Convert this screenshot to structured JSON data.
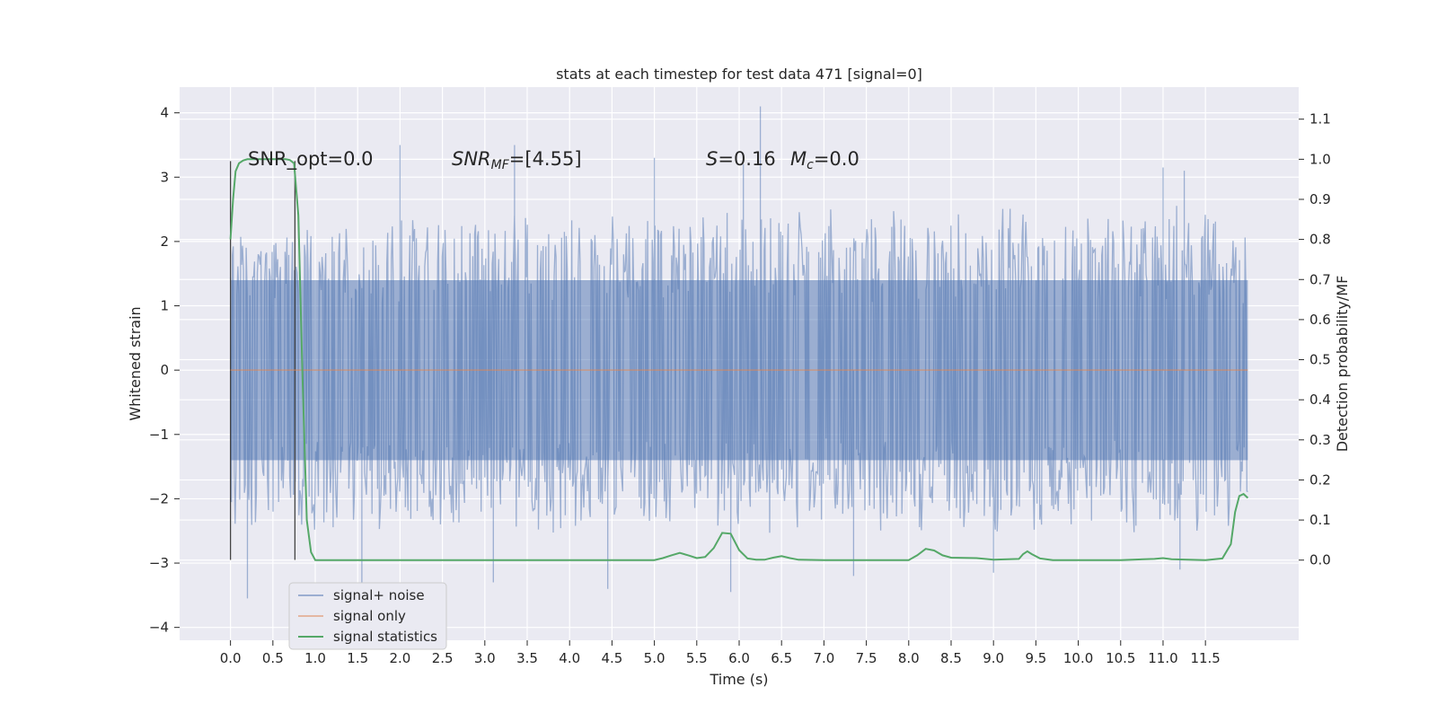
{
  "chart_data": {
    "type": "line",
    "title": "stats at each timestep for test data 471 [signal=0]",
    "xlabel": "Time (s)",
    "ylabel_left": "Whitened strain",
    "ylabel_right": "Detection probability/MF",
    "xlim": [
      -0.6,
      12.6
    ],
    "ylim_left": [
      -4.2,
      4.4
    ],
    "ylim_right": [
      -0.2,
      1.18
    ],
    "x_ticks": [
      0.0,
      0.5,
      1.0,
      1.5,
      2.0,
      2.5,
      3.0,
      3.5,
      4.0,
      4.5,
      5.0,
      5.5,
      6.0,
      6.5,
      7.0,
      7.5,
      8.0,
      8.5,
      9.0,
      9.5,
      10.0,
      10.5,
      11.0,
      11.5
    ],
    "x_tick_labels": [
      "0.0",
      "0.5",
      "1.0",
      "1.5",
      "2.0",
      "2.5",
      "3.0",
      "3.5",
      "4.0",
      "4.5",
      "5.0",
      "5.5",
      "6.0",
      "6.5",
      "7.0",
      "7.5",
      "8.0",
      "8.5",
      "9.0",
      "9.5",
      "10.0",
      "10.5",
      "11.0",
      "11.5"
    ],
    "y_left_ticks": [
      4,
      3,
      2,
      1,
      0,
      -1,
      -2,
      -3,
      -4
    ],
    "y_left_tick_labels": [
      "4",
      "3",
      "2",
      "1",
      "0",
      "−1",
      "−2",
      "−3",
      "−4"
    ],
    "y_right_ticks": [
      1.1,
      1.0,
      0.9,
      0.8,
      0.7,
      0.6,
      0.5,
      0.4,
      0.3,
      0.2,
      0.1,
      0.0
    ],
    "y_right_tick_labels": [
      "1.1",
      "1.0",
      "0.9",
      "0.8",
      "0.7",
      "0.6",
      "0.5",
      "0.4",
      "0.3",
      "0.2",
      "0.1",
      "0.0"
    ],
    "grid": true,
    "legend_position": "lower-left",
    "series": [
      {
        "name": "signal+ noise",
        "axis": "left",
        "color": "#4c72b0",
        "style": "dense noise trace",
        "x_range": [
          0.0,
          12.0
        ],
        "envelope_p10_upper": [
          1.8,
          1.9,
          2.1,
          2.0,
          2.1,
          2.1,
          2.2,
          2.1,
          2.2,
          2.1,
          2.2,
          2.1,
          2.2,
          2.3,
          2.2,
          2.1,
          2.2,
          2.1,
          2.2,
          2.2,
          2.1,
          2.2,
          2.2,
          2.3,
          1.8
        ],
        "envelope_p10_lower": [
          -2.2,
          -2.1,
          -2.2,
          -2.1,
          -2.2,
          -2.2,
          -2.1,
          -2.2,
          -2.2,
          -2.1,
          -2.2,
          -2.1,
          -2.2,
          -2.2,
          -2.1,
          -2.2,
          -2.2,
          -2.1,
          -2.2,
          -2.2,
          -2.1,
          -2.2,
          -2.2,
          -2.3,
          -2.1
        ],
        "peaks": [
          {
            "x": 2.0,
            "y": 3.5
          },
          {
            "x": 3.35,
            "y": 3.5
          },
          {
            "x": 5.0,
            "y": 3.3
          },
          {
            "x": 6.25,
            "y": 4.1
          },
          {
            "x": 6.05,
            "y": 3.2
          },
          {
            "x": 11.0,
            "y": 3.15
          },
          {
            "x": 11.25,
            "y": 3.1
          },
          {
            "x": 0.2,
            "y": -3.55
          },
          {
            "x": 1.55,
            "y": -3.35
          },
          {
            "x": 3.1,
            "y": -3.3
          },
          {
            "x": 4.45,
            "y": -3.4
          },
          {
            "x": 5.9,
            "y": -3.45
          },
          {
            "x": 7.35,
            "y": -3.2
          },
          {
            "x": 9.0,
            "y": -3.15
          },
          {
            "x": 11.2,
            "y": -3.1
          }
        ]
      },
      {
        "name": "signal only",
        "axis": "left",
        "color": "#dd8452",
        "x": [
          0.0,
          12.0
        ],
        "y": [
          0.0,
          0.0
        ]
      },
      {
        "name": "signal statistics",
        "axis": "right",
        "color": "#55a868",
        "x": [
          0.0,
          0.03,
          0.06,
          0.1,
          0.15,
          0.2,
          0.25,
          0.3,
          0.4,
          0.5,
          0.6,
          0.65,
          0.7,
          0.75,
          0.8,
          0.85,
          0.9,
          0.95,
          1.0,
          1.05,
          1.1,
          1.5,
          2.0,
          3.0,
          4.0,
          4.5,
          5.0,
          5.1,
          5.2,
          5.3,
          5.4,
          5.5,
          5.6,
          5.7,
          5.8,
          5.9,
          6.0,
          6.1,
          6.2,
          6.3,
          6.4,
          6.5,
          6.6,
          6.7,
          7.0,
          7.5,
          8.0,
          8.1,
          8.2,
          8.3,
          8.4,
          8.5,
          8.8,
          9.0,
          9.3,
          9.35,
          9.4,
          9.45,
          9.55,
          9.7,
          10.0,
          10.5,
          10.9,
          11.0,
          11.1,
          11.5,
          11.7,
          11.8,
          11.85,
          11.9,
          11.95,
          12.0
        ],
        "y": [
          0.8,
          0.9,
          0.97,
          0.99,
          0.997,
          1.0,
          1.0,
          1.0,
          1.0,
          1.0,
          1.0,
          1.0,
          0.998,
          0.99,
          0.86,
          0.45,
          0.1,
          0.02,
          0.0,
          0.0,
          0.0,
          0.0,
          0.0,
          0.0,
          0.0,
          0.0,
          0.0,
          0.005,
          0.012,
          0.018,
          0.012,
          0.005,
          0.008,
          0.03,
          0.068,
          0.066,
          0.025,
          0.004,
          0.001,
          0.001,
          0.006,
          0.01,
          0.005,
          0.001,
          0.0,
          0.0,
          0.0,
          0.012,
          0.028,
          0.024,
          0.012,
          0.006,
          0.005,
          0.001,
          0.003,
          0.015,
          0.022,
          0.015,
          0.004,
          0.0,
          0.0,
          0.0,
          0.003,
          0.005,
          0.002,
          0.0,
          0.004,
          0.04,
          0.12,
          0.16,
          0.165,
          0.155
        ]
      }
    ],
    "vertical_markers": [
      {
        "x": 0.0,
        "y_range": [
          -2.95,
          3.25
        ]
      },
      {
        "x": 0.76,
        "y_range": [
          -2.95,
          3.25
        ]
      }
    ]
  },
  "annotations": {
    "snr_opt": "SNR_opt=0.0",
    "snr_mf_label": "SNR",
    "snr_mf_sub": "MF",
    "snr_mf_value": "=[4.55]",
    "s_label": "S",
    "s_value": "=0.16",
    "mc_label": "M",
    "mc_sub": "c",
    "mc_value": "=0.0"
  }
}
